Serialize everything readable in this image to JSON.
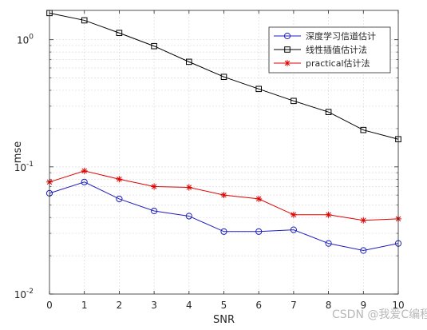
{
  "chart_data": {
    "type": "line",
    "xlabel": "SNR",
    "ylabel": "mse",
    "xlim": [
      0,
      10
    ],
    "ylim": [
      0.01,
      1.7
    ],
    "yscale": "log",
    "grid": true,
    "legend_position": "top-right",
    "x_ticks": [
      "0",
      "1",
      "2",
      "3",
      "4",
      "5",
      "6",
      "7",
      "8",
      "9",
      "10"
    ],
    "y_ticks": [
      {
        "value": 0.01,
        "base": "10",
        "exp": "-2"
      },
      {
        "value": 0.1,
        "base": "10",
        "exp": "-1"
      },
      {
        "value": 1,
        "base": "10",
        "exp": "0"
      }
    ],
    "x": [
      0,
      1,
      2,
      3,
      4,
      5,
      6,
      7,
      8,
      9,
      10
    ],
    "series": [
      {
        "name": "深度学习信道估计",
        "color": "#1f1fbf",
        "marker": "circle",
        "values": [
          0.062,
          0.076,
          0.056,
          0.045,
          0.041,
          0.031,
          0.031,
          0.032,
          0.025,
          0.022,
          0.025
        ]
      },
      {
        "name": "线性插值估计法",
        "color": "#000000",
        "marker": "square",
        "values": [
          1.62,
          1.42,
          1.13,
          0.89,
          0.67,
          0.51,
          0.41,
          0.33,
          0.27,
          0.195,
          0.165
        ]
      },
      {
        "name": "practical估计法",
        "color": "#e00000",
        "marker": "asterisk",
        "values": [
          0.076,
          0.093,
          0.08,
          0.07,
          0.069,
          0.06,
          0.056,
          0.042,
          0.042,
          0.038,
          0.039
        ]
      }
    ]
  },
  "watermark": "CSDN @我爱C编程"
}
